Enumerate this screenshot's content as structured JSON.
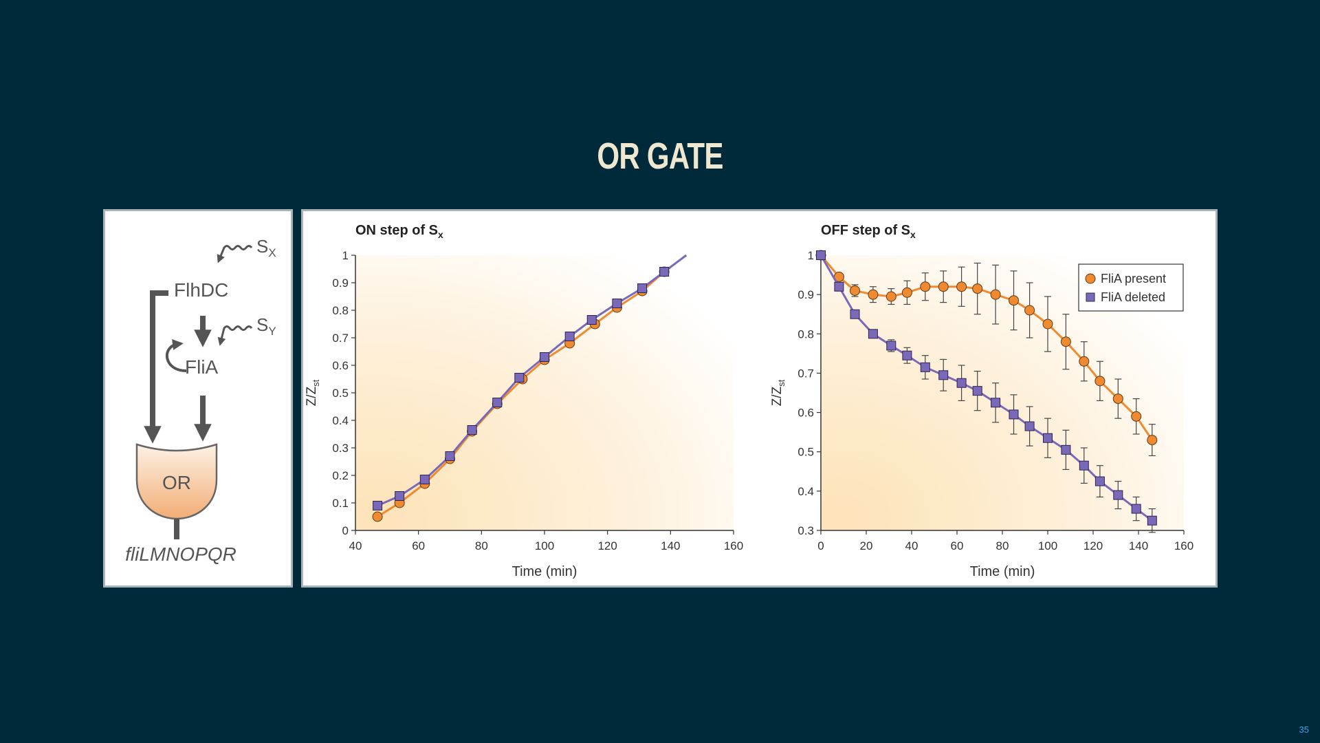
{
  "slide": {
    "title": "OR GATE",
    "page_number": "35"
  },
  "diagram": {
    "nodes": {
      "input_x": "S",
      "input_x_sub": "X",
      "input_y": "S",
      "input_y_sub": "Y",
      "regulator_1": "FlhDC",
      "regulator_2": "FliA",
      "gate": "OR",
      "output_operon": "fliLMNOPQR"
    },
    "colors": {
      "arrow": "#555555",
      "gate_fill_light": "#fdebd8",
      "gate_fill_dark": "#f3b27c"
    }
  },
  "chart_data": [
    {
      "type": "line",
      "title": "ON step of S",
      "title_sub": "x",
      "xlabel": "Time (min)",
      "ylabel": "Z/Z",
      "ylabel_sub": "st",
      "xlim": [
        40,
        160
      ],
      "ylim": [
        0,
        1
      ],
      "xticks": [
        "40",
        "60",
        "80",
        "100",
        "120",
        "140",
        "160"
      ],
      "yticks": [
        "0",
        "0.1",
        "0.2",
        "0.3",
        "0.4",
        "0.5",
        "0.6",
        "0.7",
        "0.8",
        "0.9",
        "1"
      ],
      "series": [
        {
          "color": "#f08a30",
          "marker": "circle",
          "x": [
            47,
            54,
            62,
            70,
            77,
            85,
            93,
            100,
            108,
            116,
            123,
            131,
            138
          ],
          "y": [
            0.05,
            0.1,
            0.17,
            0.26,
            0.36,
            0.46,
            0.55,
            0.62,
            0.68,
            0.75,
            0.81,
            0.87,
            0.94
          ]
        },
        {
          "color": "#7a68b8",
          "marker": "square",
          "line_end": [
            145,
            1.0
          ],
          "x": [
            47,
            54,
            62,
            70,
            77,
            85,
            92,
            100,
            108,
            115,
            123,
            131,
            138
          ],
          "y": [
            0.09,
            0.125,
            0.185,
            0.27,
            0.365,
            0.465,
            0.555,
            0.63,
            0.705,
            0.765,
            0.825,
            0.88,
            0.94
          ]
        }
      ]
    },
    {
      "type": "line",
      "title": "OFF step of S",
      "title_sub": "x",
      "xlabel": "Time (min)",
      "ylabel": "Z/Z",
      "ylabel_sub": "st",
      "xlim": [
        0,
        160
      ],
      "ylim": [
        0.3,
        1
      ],
      "xticks": [
        "0",
        "20",
        "40",
        "60",
        "80",
        "100",
        "120",
        "140",
        "160"
      ],
      "yticks": [
        "0.3",
        "0.4",
        "0.5",
        "0.6",
        "0.7",
        "0.8",
        "0.9",
        "1"
      ],
      "legend": {
        "position": "top-right",
        "entries": [
          "FliA present",
          "FliA deleted"
        ]
      },
      "series": [
        {
          "name": "FliA present",
          "color": "#f08a30",
          "marker": "circle",
          "x": [
            0,
            8,
            15,
            23,
            31,
            38,
            46,
            54,
            62,
            69,
            77,
            85,
            92,
            100,
            108,
            116,
            123,
            131,
            139,
            146
          ],
          "y": [
            1.0,
            0.945,
            0.91,
            0.9,
            0.895,
            0.905,
            0.92,
            0.92,
            0.92,
            0.915,
            0.9,
            0.885,
            0.86,
            0.825,
            0.78,
            0.73,
            0.68,
            0.635,
            0.59,
            0.53
          ],
          "err": [
            0,
            0,
            0.015,
            0.02,
            0.02,
            0.03,
            0.035,
            0.04,
            0.05,
            0.065,
            0.075,
            0.075,
            0.07,
            0.07,
            0.07,
            0.05,
            0.05,
            0.05,
            0.045,
            0.04
          ]
        },
        {
          "name": "FliA deleted",
          "color": "#7a68b8",
          "marker": "square",
          "x": [
            0,
            8,
            15,
            23,
            31,
            38,
            46,
            54,
            62,
            69,
            77,
            85,
            92,
            100,
            108,
            116,
            123,
            131,
            139,
            146
          ],
          "y": [
            1.0,
            0.92,
            0.85,
            0.8,
            0.77,
            0.745,
            0.715,
            0.695,
            0.675,
            0.655,
            0.625,
            0.595,
            0.565,
            0.535,
            0.505,
            0.465,
            0.425,
            0.39,
            0.355,
            0.325
          ],
          "err": [
            0,
            0,
            0,
            0,
            0.015,
            0.02,
            0.03,
            0.04,
            0.045,
            0.05,
            0.05,
            0.05,
            0.05,
            0.05,
            0.05,
            0.045,
            0.04,
            0.035,
            0.03,
            0.03
          ]
        }
      ]
    }
  ]
}
